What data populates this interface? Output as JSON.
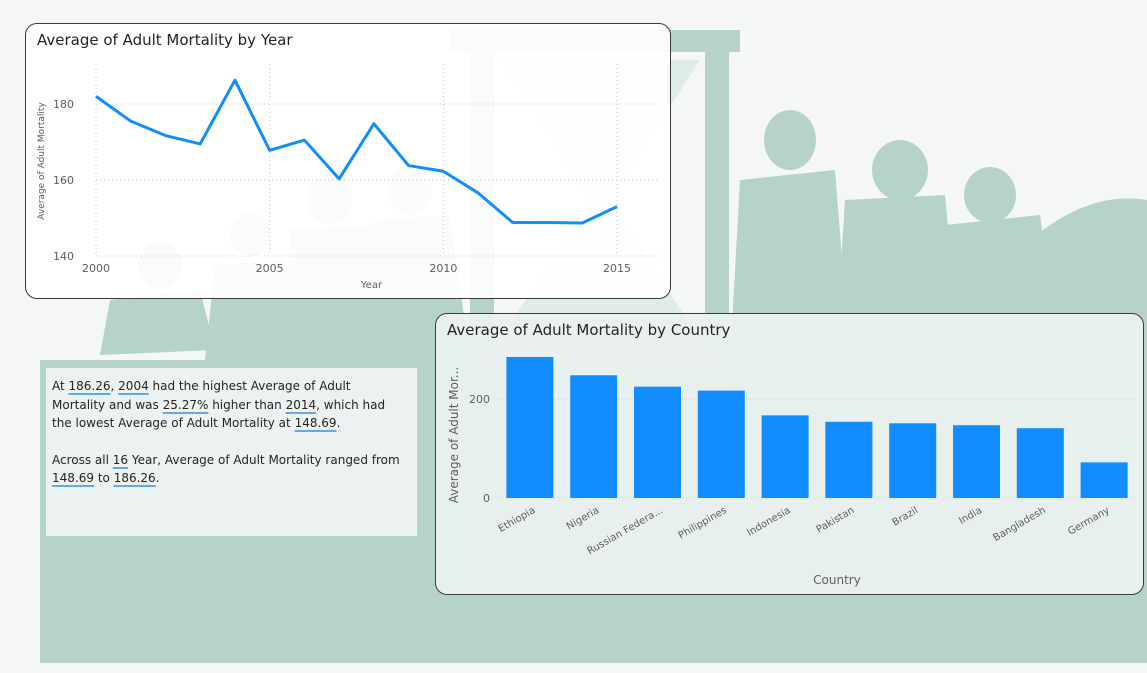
{
  "theme": {
    "accent": "#118dff",
    "text": "#252423",
    "axis_text": "#605e5c",
    "grid": "#c8c6c4",
    "background_silhouette": "#b6d3cb"
  },
  "background": {
    "image": "aging-silhouette-hourglass",
    "color": "#b6d3cb"
  },
  "line_chart": {
    "title": "Average of Adult Mortality by Year",
    "chart_data": {
      "type": "line",
      "x": [
        2000,
        2001,
        2002,
        2003,
        2004,
        2005,
        2006,
        2007,
        2008,
        2009,
        2010,
        2011,
        2012,
        2013,
        2014,
        2015
      ],
      "series": [
        {
          "values": [
            182.0,
            175.5,
            171.7,
            169.5,
            186.26,
            167.8,
            170.5,
            160.3,
            174.8,
            163.8,
            162.3,
            156.6,
            148.8,
            148.8,
            148.69,
            153.0
          ],
          "color": "#118dff"
        }
      ],
      "xlabel": "Year",
      "ylabel": "Average of Adult Mortality",
      "xticks": [
        2000,
        2005,
        2010,
        2015
      ],
      "yticks": [
        140,
        160,
        180
      ],
      "xlim": [
        2000,
        2015
      ],
      "ylim": [
        140,
        190
      ],
      "grid": true
    }
  },
  "bar_chart": {
    "title": "Average of Adult Mortality by Country",
    "chart_data": {
      "type": "bar",
      "categories": [
        "Ethiopia",
        "Nigeria",
        "Russian Federa...",
        "Philippines",
        "Indonesia",
        "Pakistan",
        "Brazil",
        "India",
        "Bangladesh",
        "Germany"
      ],
      "values": [
        285,
        248,
        225,
        217,
        167,
        154,
        151,
        147,
        141,
        72
      ],
      "color": "#118dff",
      "xlabel": "Country",
      "ylabel": "Average of Adult Mor...",
      "yticks": [
        0,
        200
      ],
      "ylim": [
        0,
        295
      ],
      "grid": true
    }
  },
  "narrative": {
    "p1": [
      {
        "t": "At "
      },
      {
        "t": "186.26",
        "hl": true
      },
      {
        "t": ", "
      },
      {
        "t": "2004",
        "hl": true
      },
      {
        "t": " had the highest Average of Adult Mortality and was "
      },
      {
        "t": "25.27%",
        "hl": true
      },
      {
        "t": " higher than "
      },
      {
        "t": "2014",
        "hl": true
      },
      {
        "t": ", which had the lowest Average of Adult Mortality at "
      },
      {
        "t": "148.69",
        "hl": true
      },
      {
        "t": "."
      }
    ],
    "p2": [
      {
        "t": "Across all "
      },
      {
        "t": "16",
        "hl": true
      },
      {
        "t": " Year, Average of Adult Mortality ranged from "
      },
      {
        "t": "148.69",
        "hl": true
      },
      {
        "t": " to "
      },
      {
        "t": "186.26",
        "hl": true
      },
      {
        "t": "."
      }
    ]
  }
}
